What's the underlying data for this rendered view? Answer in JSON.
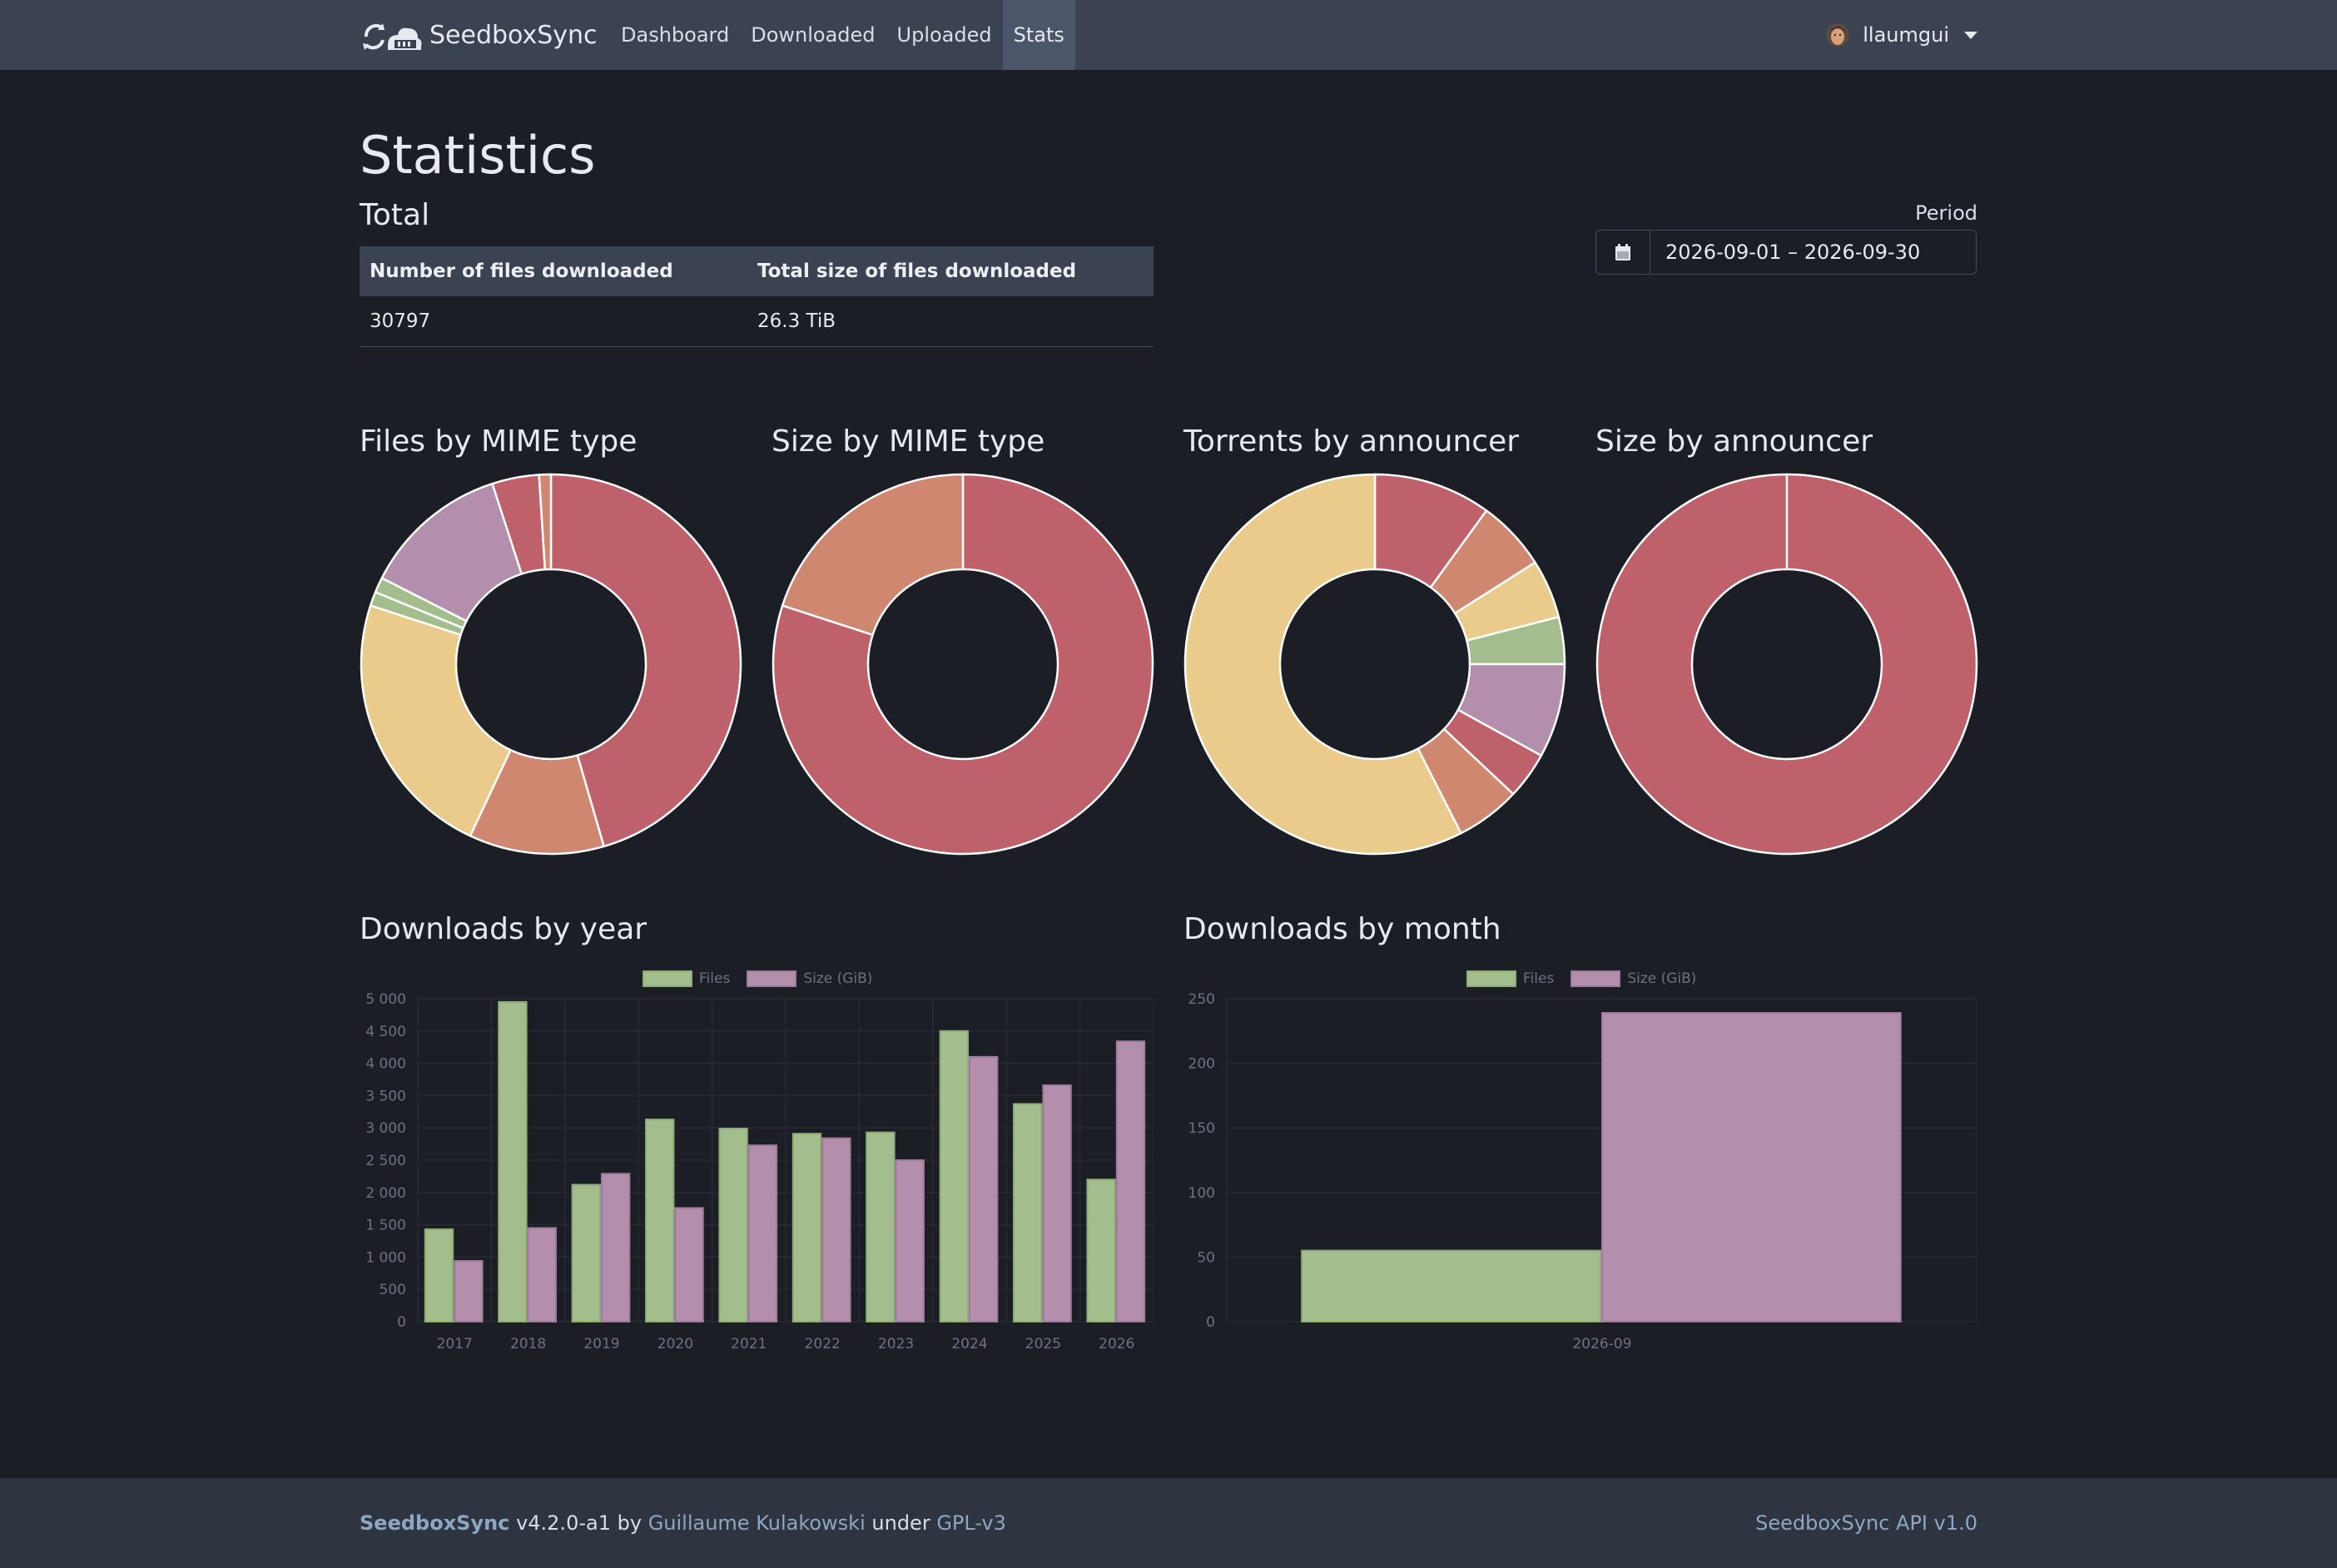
{
  "navbar": {
    "brand": "SeedboxSync",
    "links": [
      "Dashboard",
      "Downloaded",
      "Uploaded",
      "Stats"
    ],
    "active": "Stats",
    "user": "llaumgui"
  },
  "page": {
    "title": "Statistics",
    "total_title": "Total",
    "total_table": {
      "headers": [
        "Number of files downloaded",
        "Total size of files downloaded"
      ],
      "values": [
        "30797",
        "26.3 TiB"
      ]
    },
    "period_label": "Period",
    "period_value": "2026-09-01 – 2026-09-30"
  },
  "colors": {
    "red": "#bf616a",
    "orange": "#d08770",
    "yellow": "#ebcb8b",
    "green": "#a3be8c",
    "purple": "#b48ead"
  },
  "chart_data": [
    {
      "type": "pie",
      "title": "Files by MIME type",
      "values": [
        45.5,
        11.5,
        23,
        1.2,
        1.3,
        12.5,
        4,
        1
      ],
      "colors": [
        "#bf616a",
        "#d08770",
        "#ebcb8b",
        "#a3be8c",
        "#a3be8c",
        "#b48ead",
        "#bf616a",
        "#d08770"
      ]
    },
    {
      "type": "pie",
      "title": "Size by MIME type",
      "values": [
        80,
        20
      ],
      "colors": [
        "#bf616a",
        "#d08770"
      ]
    },
    {
      "type": "pie",
      "title": "Torrents by announcer",
      "values": [
        10,
        6,
        5,
        4,
        8,
        4,
        5.5,
        57.5
      ],
      "colors": [
        "#bf616a",
        "#d08770",
        "#ebcb8b",
        "#a3be8c",
        "#b48ead",
        "#bf616a",
        "#d08770",
        "#ebcb8b"
      ]
    },
    {
      "type": "pie",
      "title": "Size by announcer",
      "values": [
        100
      ],
      "colors": [
        "#bf616a"
      ]
    },
    {
      "type": "bar",
      "title": "Downloads by year",
      "categories": [
        "2017",
        "2018",
        "2019",
        "2020",
        "2021",
        "2022",
        "2023",
        "2024",
        "2025",
        "2026"
      ],
      "series": [
        {
          "name": "Files",
          "values": [
            1430,
            4950,
            2120,
            3130,
            2990,
            2910,
            2930,
            4500,
            3370,
            2200
          ]
        },
        {
          "name": "Size (GiB)",
          "values": [
            940,
            1450,
            2290,
            1760,
            2730,
            2840,
            2500,
            4100,
            3660,
            4340
          ]
        }
      ],
      "ylim": [
        0,
        5000
      ],
      "yticks": [
        "0",
        "500",
        "1 000",
        "1 500",
        "2 000",
        "2 500",
        "3 000",
        "3 500",
        "4 000",
        "4 500",
        "5 000"
      ],
      "legend": "top"
    },
    {
      "type": "bar",
      "title": "Downloads by month",
      "categories": [
        "2026-09"
      ],
      "series": [
        {
          "name": "Files",
          "values": [
            55
          ]
        },
        {
          "name": "Size (GiB)",
          "values": [
            239
          ]
        }
      ],
      "ylim": [
        0,
        250
      ],
      "yticks": [
        "0",
        "50",
        "100",
        "150",
        "200",
        "250"
      ],
      "legend": "top"
    }
  ],
  "footer": {
    "brand": "SeedboxSync",
    "version": "v4.2.0-a1 by",
    "author": "Guillaume Kulakowski",
    "under": "under",
    "license": "GPL-v3",
    "api": "SeedboxSync API v1.0"
  }
}
